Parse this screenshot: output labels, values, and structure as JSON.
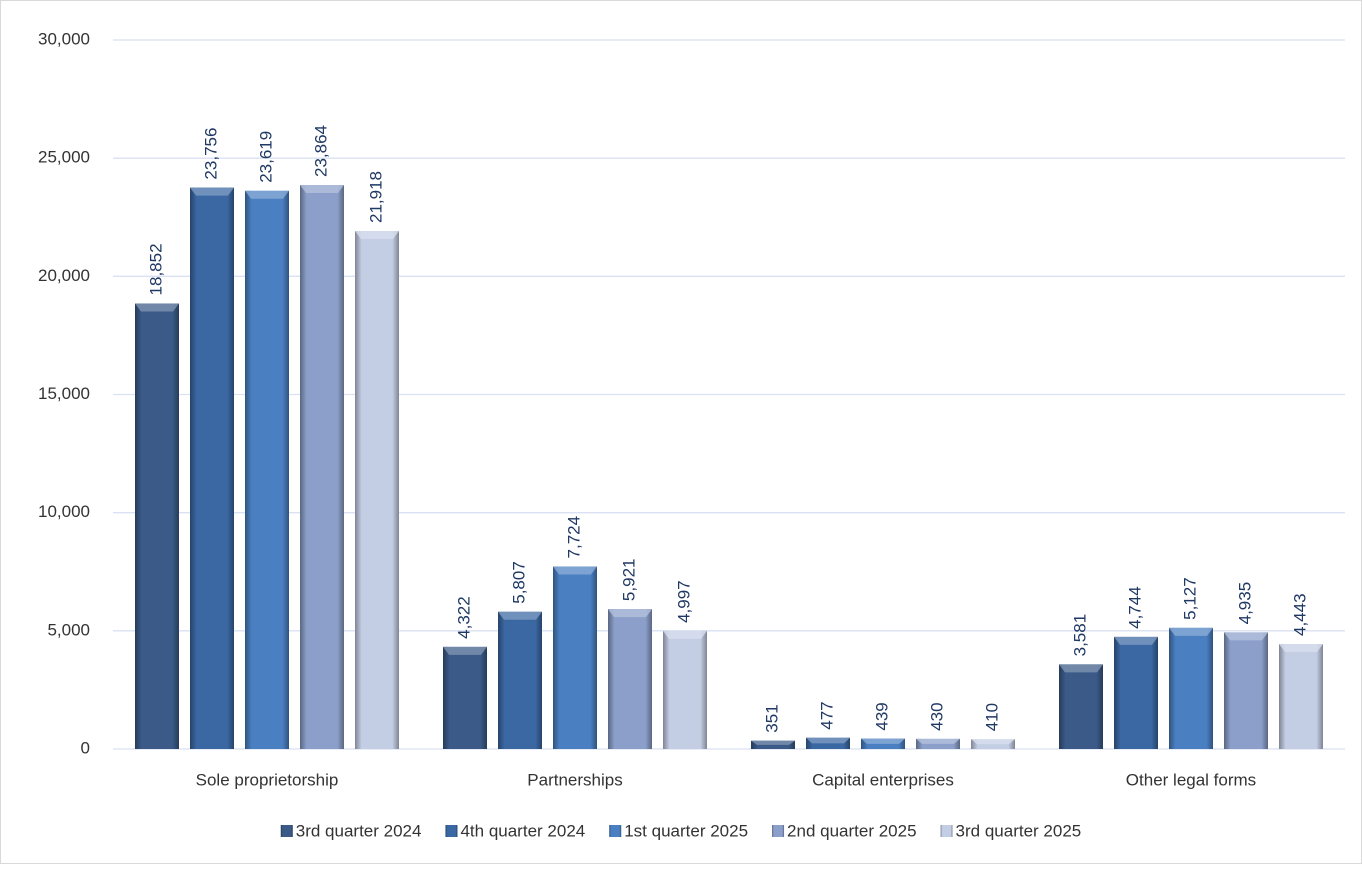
{
  "chart_data": {
    "type": "bar",
    "categories": [
      "Sole proprietorship",
      "Partnerships",
      "Capital enterprises",
      "Other legal forms"
    ],
    "series": [
      {
        "name": "3rd quarter 2024",
        "color": "#3b5a88",
        "values": [
          18852,
          4322,
          351,
          3581
        ],
        "value_labels": [
          "18,852",
          "4,322",
          "351",
          "3,581"
        ]
      },
      {
        "name": "4th quarter 2024",
        "color": "#3b67a3",
        "values": [
          23756,
          5807,
          477,
          4744
        ],
        "value_labels": [
          "23,756",
          "5,807",
          "477",
          "4,744"
        ]
      },
      {
        "name": "1st quarter 2025",
        "color": "#4a7fc2",
        "values": [
          23619,
          7724,
          439,
          5127
        ],
        "value_labels": [
          "23,619",
          "7,724",
          "439",
          "5,127"
        ]
      },
      {
        "name": "2nd quarter 2025",
        "color": "#8b9fca",
        "values": [
          23864,
          5921,
          430,
          4935
        ],
        "value_labels": [
          "23,864",
          "5,921",
          "430",
          "4,935"
        ]
      },
      {
        "name": "3rd quarter 2025",
        "color": "#c3cde4",
        "values": [
          21918,
          4997,
          410,
          4443
        ],
        "value_labels": [
          "21,918",
          "4,997",
          "410",
          "4,443"
        ]
      }
    ],
    "ylim": [
      0,
      30000
    ],
    "yticks": [
      0,
      {
        "value": 5000,
        "label": "5,000"
      },
      {
        "value": 10000,
        "label": "10,000"
      },
      {
        "value": 15000,
        "label": "15,000"
      },
      {
        "value": 20000,
        "label": "20,000"
      },
      {
        "value": 25000,
        "label": "25,000"
      },
      {
        "value": 30000,
        "label": "30,000"
      }
    ],
    "grid": true,
    "legend": "bottom"
  }
}
